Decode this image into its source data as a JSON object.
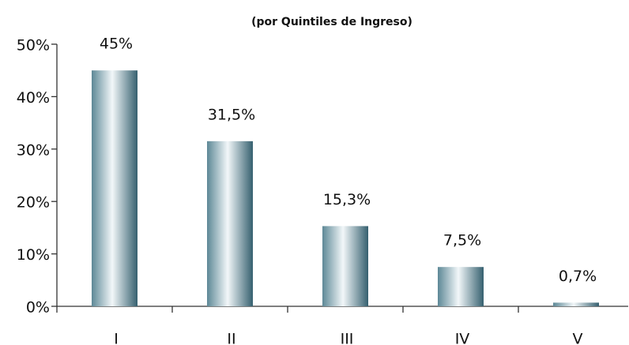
{
  "chart_data": {
    "type": "bar",
    "title": "(por Quintiles de Ingreso)",
    "categories": [
      "I",
      "II",
      "III",
      "IV",
      "V"
    ],
    "values": [
      45,
      31.5,
      15.3,
      7.5,
      0.7
    ],
    "value_labels": [
      "45%",
      "31,5%",
      "15,3%",
      "7,5%",
      "0,7%"
    ],
    "color": "#4e7886",
    "ylim": [
      0,
      50
    ],
    "yticks": [
      {
        "value": 0,
        "label": "0%"
      },
      {
        "value": 10,
        "label": "10%"
      },
      {
        "value": 20,
        "label": "20%"
      },
      {
        "value": 30,
        "label": "30%"
      },
      {
        "value": 40,
        "label": "40%"
      },
      {
        "value": 50,
        "label": "50%"
      }
    ]
  }
}
